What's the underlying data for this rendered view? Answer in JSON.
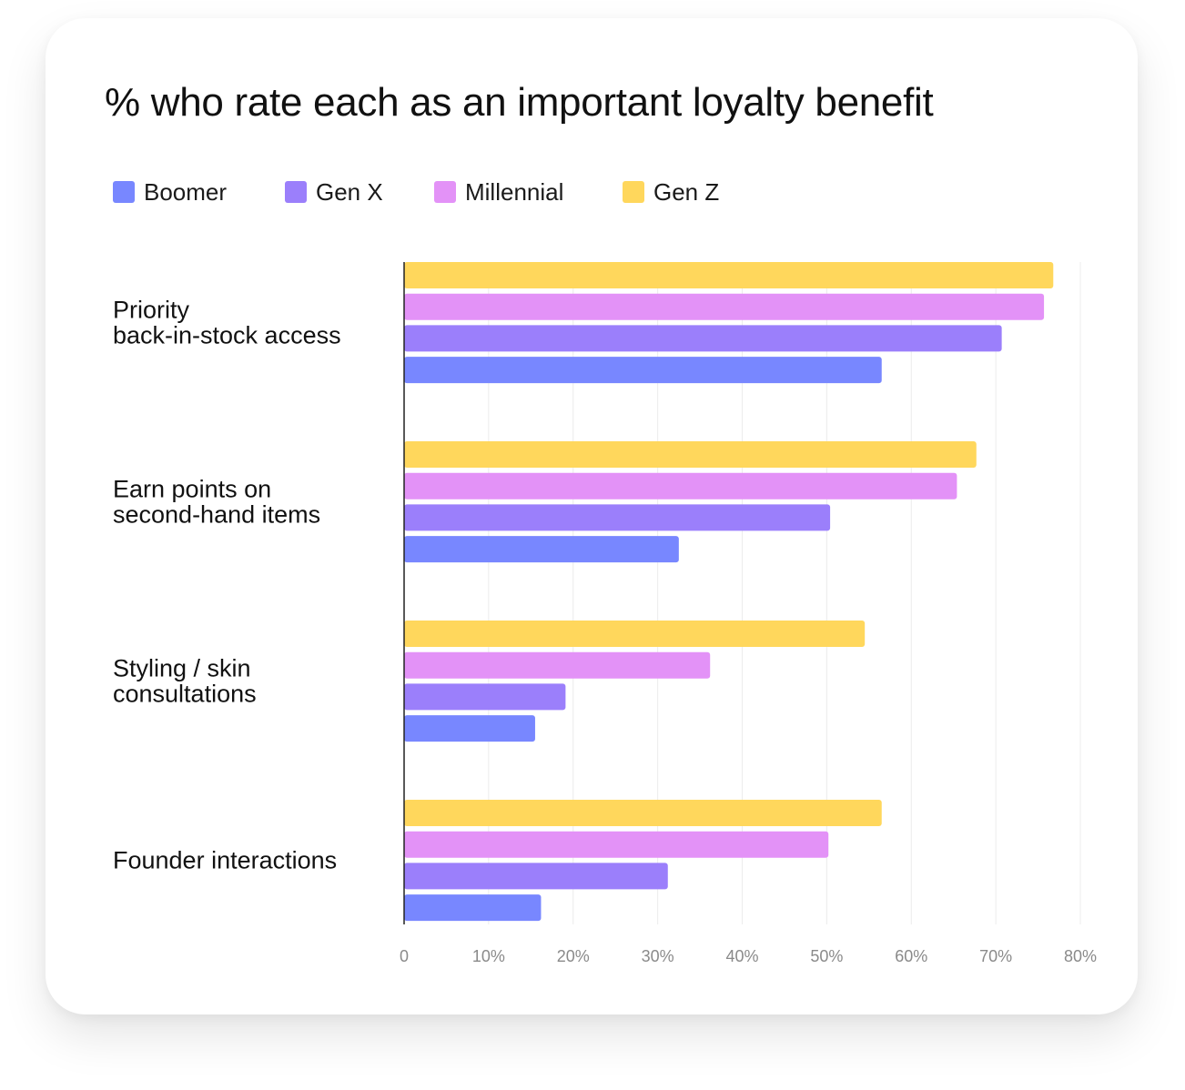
{
  "chart_data": {
    "type": "bar",
    "orientation": "horizontal",
    "title": "% who rate each as an important loyalty benefit",
    "categories": [
      [
        "Priority",
        "back-in-stock access"
      ],
      [
        "Earn points on",
        "second-hand items"
      ],
      [
        "Styling / skin",
        "consultations"
      ],
      [
        "Founder interactions"
      ]
    ],
    "series": [
      {
        "name": "Boomer",
        "color": "#7887ff",
        "values": [
          56.5,
          32.5,
          15.5,
          16.2
        ]
      },
      {
        "name": "Gen X",
        "color": "#9b7ffb",
        "values": [
          70.7,
          50.4,
          19.1,
          31.2
        ]
      },
      {
        "name": "Millennial",
        "color": "#e392f7",
        "values": [
          75.7,
          65.4,
          36.2,
          50.2
        ]
      },
      {
        "name": "Gen Z",
        "color": "#ffd75c",
        "values": [
          76.8,
          67.7,
          54.5,
          56.5
        ]
      }
    ],
    "xlim": [
      0,
      80
    ],
    "xticks": [
      "0",
      "10%",
      "20%",
      "30%",
      "40%",
      "50%",
      "60%",
      "70%",
      "80%"
    ],
    "xtick_values": [
      0,
      10,
      20,
      30,
      40,
      50,
      60,
      70,
      80
    ],
    "grid": true,
    "legend_position": "top-left"
  }
}
